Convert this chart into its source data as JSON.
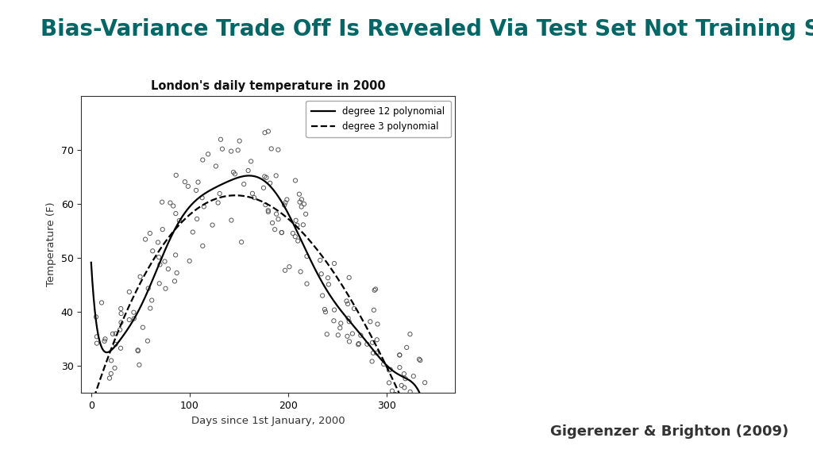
{
  "title": "Bias-Variance Trade Off Is Revealed Via Test Set Not Training Set",
  "title_color": "#006666",
  "title_fontsize": 20,
  "subtitle": "London's daily temperature in 2000",
  "xlabel": "Days since 1st January, 2000",
  "ylabel": "Temperature (F)",
  "background_color": "#ffffff",
  "plot_bg_color": "#ffffff",
  "xlim": [
    -10,
    370
  ],
  "ylim": [
    25,
    80
  ],
  "yticks": [
    30,
    40,
    50,
    60,
    70
  ],
  "xticks": [
    0,
    100,
    200,
    300
  ],
  "legend_entries": [
    "degree 12 polynomial",
    "degree 3 polynomial"
  ],
  "citation": "Gigerenzer & Brighton (2009)",
  "seed": 17,
  "n_points": 200,
  "noise_std": 5.5
}
